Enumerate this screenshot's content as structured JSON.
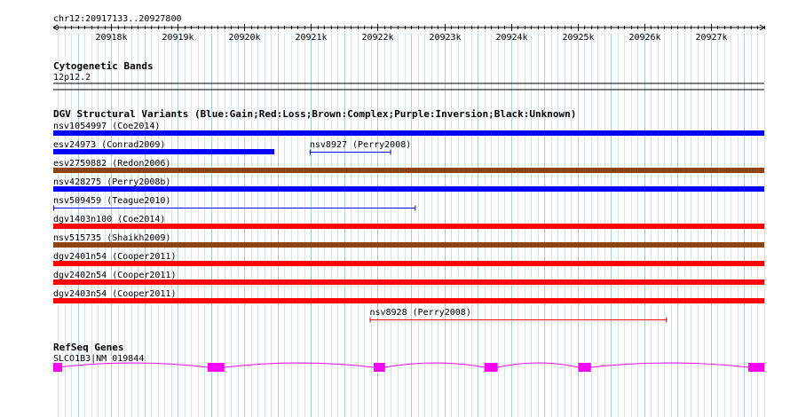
{
  "ruler": {
    "position": "chr12:20917133..20927800",
    "ticks": [
      "20918k",
      "20919k",
      "20920k",
      "20921k",
      "20922k",
      "20923k",
      "20924k",
      "20925k",
      "20926k",
      "20927k"
    ],
    "tick_values": [
      20918000,
      20919000,
      20920000,
      20921000,
      20922000,
      20923000,
      20924000,
      20925000,
      20926000,
      20927000
    ],
    "start": 20917133,
    "end": 20927800
  },
  "cytoband": {
    "title": "Cytogenetic Bands",
    "band": "12p12.2"
  },
  "dgv": {
    "title": "DGV Structural Variants (Blue:Gain;Red:Loss;Brown:Complex;Purple:Inversion;Black:Unknown)",
    "colors": {
      "gain": "#0000ff",
      "loss": "#ff0000",
      "complex": "#8b4513"
    },
    "variants": [
      {
        "label": "nsv1054997 (Coe2014)",
        "type": "gain",
        "start": 20917133,
        "end": 20927800,
        "style": "thick",
        "row": 0
      },
      {
        "label": "esv24973 (Conrad2009)",
        "type": "gain",
        "start": 20917133,
        "end": 20920450,
        "style": "thick",
        "row": 1
      },
      {
        "label": "nsv8927 (Perry2008)",
        "type": "gain",
        "start": 20920980,
        "end": 20922200,
        "style": "thin",
        "row": 1
      },
      {
        "label": "esv2759882 (Redon2006)",
        "type": "complex",
        "start": 20917133,
        "end": 20927800,
        "style": "thick",
        "row": 2
      },
      {
        "label": "nsv428275 (Perry2008b)",
        "type": "gain",
        "start": 20917133,
        "end": 20927800,
        "style": "thick",
        "row": 3
      },
      {
        "label": "nsv509459 (Teague2010)",
        "type": "gain",
        "start": 20917133,
        "end": 20922570,
        "style": "thin",
        "row": 4
      },
      {
        "label": "dgv1403n100 (Coe2014)",
        "type": "loss",
        "start": 20917133,
        "end": 20927800,
        "style": "thick",
        "row": 5
      },
      {
        "label": "nsv515735 (Shaikh2009)",
        "type": "complex",
        "start": 20917133,
        "end": 20927800,
        "style": "thick",
        "row": 6
      },
      {
        "label": "dgv2401n54 (Cooper2011)",
        "type": "loss",
        "start": 20917133,
        "end": 20927800,
        "style": "thick",
        "row": 7
      },
      {
        "label": "dgv2402n54 (Cooper2011)",
        "type": "loss",
        "start": 20917133,
        "end": 20927800,
        "style": "thick",
        "row": 8
      },
      {
        "label": "dgv2403n54 (Cooper2011)",
        "type": "loss",
        "start": 20917133,
        "end": 20927800,
        "style": "thick",
        "row": 9
      },
      {
        "label": "nsv8928 (Perry2008)",
        "type": "loss",
        "start": 20921880,
        "end": 20926340,
        "style": "thin",
        "row": 10
      }
    ]
  },
  "refseq": {
    "title": "RefSeq Genes",
    "gene_label": "SLCO1B3|NM_019844",
    "color": "#ff00ff",
    "exons": [
      [
        20917133,
        20917200
      ],
      [
        20919450,
        20919700
      ],
      [
        20921940,
        20922110
      ],
      [
        20923600,
        20923800
      ],
      [
        20925010,
        20925200
      ],
      [
        20927560,
        20927800
      ]
    ]
  }
}
